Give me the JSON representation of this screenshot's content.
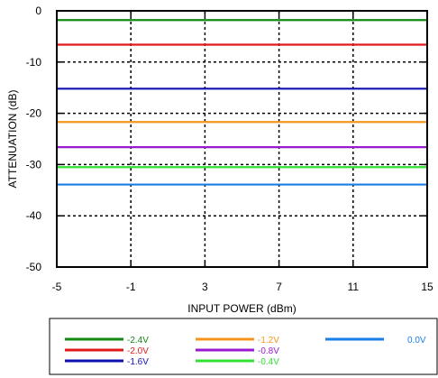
{
  "chart_data": {
    "type": "line",
    "xlabel": "INPUT POWER (dBm)",
    "ylabel": "ATTENUATION (dB)",
    "xlim": [
      -5,
      15
    ],
    "ylim": [
      -50,
      0
    ],
    "x_ticks": [
      -5,
      -1,
      3,
      7,
      11,
      15
    ],
    "y_ticks": [
      0,
      -10,
      -20,
      -30,
      -40,
      -50
    ],
    "grid": true,
    "legend_position": "bottom",
    "series": [
      {
        "name": "-2.4V",
        "color": "#138a13",
        "x": [
          -5,
          15
        ],
        "y": [
          -1.8,
          -1.8
        ]
      },
      {
        "name": "-2.0V",
        "color": "#e01a1a",
        "x": [
          -5,
          15
        ],
        "y": [
          -6.6,
          -6.6
        ]
      },
      {
        "name": "-1.6V",
        "color": "#1010b0",
        "x": [
          -5,
          15
        ],
        "y": [
          -15.2,
          -15.2
        ]
      },
      {
        "name": "-1.2V",
        "color": "#f5941e",
        "x": [
          -5,
          15
        ],
        "y": [
          -21.7,
          -21.7
        ]
      },
      {
        "name": "-0.8V",
        "color": "#9b1ad0",
        "x": [
          -5,
          15
        ],
        "y": [
          -26.6,
          -26.6
        ]
      },
      {
        "name": "-0.4V",
        "color": "#33e033",
        "x": [
          -5,
          15
        ],
        "y": [
          -30.5,
          -30.5
        ]
      },
      {
        "name": "0.0V",
        "color": "#1a7ee8",
        "x": [
          -5,
          15
        ],
        "y": [
          -33.9,
          -33.9
        ]
      }
    ]
  }
}
